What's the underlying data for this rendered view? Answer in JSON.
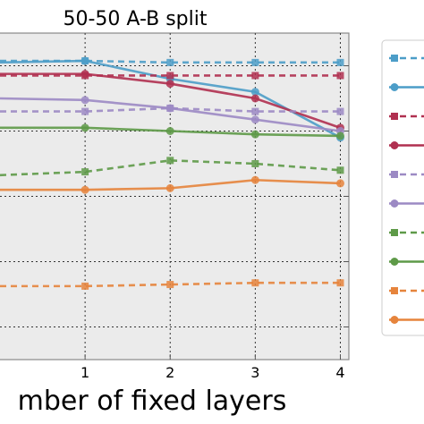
{
  "chart_data": {
    "type": "line",
    "title": "50-50 A-B split",
    "xlabel": "mber of fixed layers",
    "ylabel": "",
    "x": [
      0,
      1,
      2,
      3,
      4
    ],
    "x_tick_labels": [
      "1",
      "2",
      "3",
      "4"
    ],
    "xlim": [
      0,
      4.1
    ],
    "ylim": [
      0,
      1
    ],
    "grid": true,
    "legend_position": "right",
    "series": [
      {
        "color": "#4c9dc8",
        "linestyle": "dashed",
        "marker": "square",
        "values": [
          0.915,
          0.915,
          0.91,
          0.91,
          0.91
        ]
      },
      {
        "color": "#4c9dc8",
        "linestyle": "solid",
        "marker": "circle",
        "values": [
          0.91,
          0.915,
          0.86,
          0.82,
          0.68
        ]
      },
      {
        "color": "#b03050",
        "linestyle": "dashed",
        "marker": "square",
        "values": [
          0.87,
          0.87,
          0.87,
          0.87,
          0.87
        ]
      },
      {
        "color": "#b03050",
        "linestyle": "solid",
        "marker": "circle",
        "values": [
          0.875,
          0.875,
          0.845,
          0.8,
          0.71
        ]
      },
      {
        "color": "#9c8ac4",
        "linestyle": "dashed",
        "marker": "square",
        "values": [
          0.76,
          0.76,
          0.77,
          0.76,
          0.76
        ]
      },
      {
        "color": "#9c8ac4",
        "linestyle": "solid",
        "marker": "circle",
        "values": [
          0.8,
          0.795,
          0.77,
          0.735,
          0.7
        ]
      },
      {
        "color": "#5e9a48",
        "linestyle": "dashed",
        "marker": "square",
        "values": [
          0.565,
          0.575,
          0.61,
          0.6,
          0.58
        ]
      },
      {
        "color": "#5e9a48",
        "linestyle": "solid",
        "marker": "circle",
        "values": [
          0.71,
          0.71,
          0.7,
          0.69,
          0.685
        ]
      },
      {
        "color": "#e6843c",
        "linestyle": "dashed",
        "marker": "square",
        "values": [
          0.225,
          0.225,
          0.23,
          0.235,
          0.235
        ]
      },
      {
        "color": "#e6843c",
        "linestyle": "solid",
        "marker": "circle",
        "values": [
          0.52,
          0.52,
          0.525,
          0.55,
          0.54
        ]
      }
    ]
  }
}
